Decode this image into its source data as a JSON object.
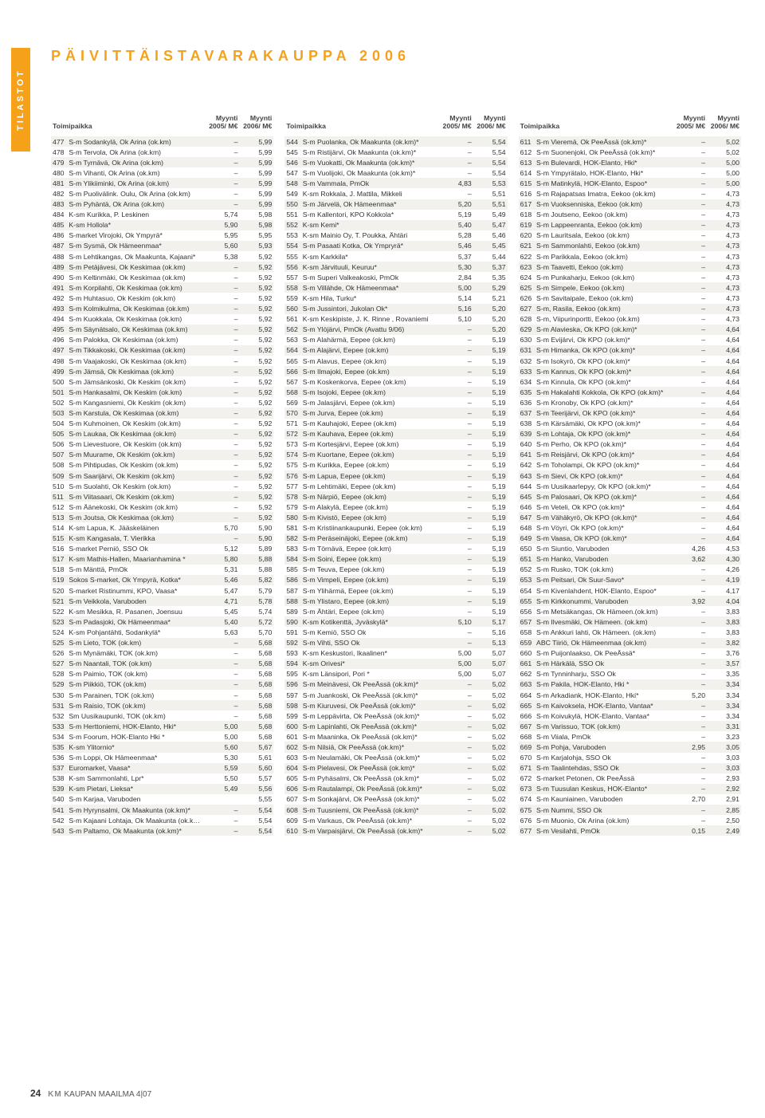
{
  "sidebar": "TILASTOT",
  "header": "PÄIVITTÄISTAVARAKAUPPA 2006",
  "column_headers": {
    "loc": "Toimipaikka",
    "y1": "Myynti 2005/ M€",
    "y2": "Myynti 2006/ M€"
  },
  "col1": [
    [
      "477",
      "S-m Sodankylä, Ok Arina (ok.km)",
      "–",
      "5,99"
    ],
    [
      "478",
      "S-m Tervola, Ok Arina (ok.km)",
      "–",
      "5,99"
    ],
    [
      "479",
      "S-m Tyrnävä, Ok Arina (ok.km)",
      "–",
      "5,99"
    ],
    [
      "480",
      "S-m Vihanti, Ok Arina (ok.km)",
      "–",
      "5,99"
    ],
    [
      "481",
      "S-m Ylikiiminki, Ok Arina (ok.km)",
      "–",
      "5,99"
    ],
    [
      "482",
      "S-m Puolivälink. Oulu, Ok Arina (ok.km)",
      "–",
      "5,99"
    ],
    [
      "483",
      "S-m Pyhäntä, Ok Arina (ok.km)",
      "–",
      "5,99"
    ],
    [
      "484",
      "K-sm Kurikka, P. Leskinen",
      "5,74",
      "5,98"
    ],
    [
      "485",
      "K-sm Hollola*",
      "5,90",
      "5,98"
    ],
    [
      "486",
      "S-market Virojoki, Ok Ympyrä*",
      "5,95",
      "5,95"
    ],
    [
      "487",
      "S-m Sysmä, Ok Hämeenmaa*",
      "5,60",
      "5,93"
    ],
    [
      "488",
      "S-m Lehtikangas, Ok Maakunta, Kajaani*",
      "5,38",
      "5,92"
    ],
    [
      "489",
      "S-m Petäjävesi, Ok Keskimaa (ok.km)",
      "–",
      "5,92"
    ],
    [
      "490",
      "S-m Keltinmäki, Ok Keskimaa (ok.km)",
      "–",
      "5,92"
    ],
    [
      "491",
      "S-m Korpilahti, Ok Keskimaa (ok.km)",
      "–",
      "5,92"
    ],
    [
      "492",
      "S-m Huhtasuo, Ok Keskim (ok.km)",
      "–",
      "5,92"
    ],
    [
      "493",
      "S-m Kolmikulma, Ok Keskimaa (ok.km)",
      "–",
      "5,92"
    ],
    [
      "494",
      "S-m Kuokkala, Ok Keskimaa (ok.km)",
      "–",
      "5,92"
    ],
    [
      "495",
      "S-m Säynätsalo, Ok Keskimaa (ok.km)",
      "–",
      "5,92"
    ],
    [
      "496",
      "S-m Palokka, Ok Keskimaa (ok.km)",
      "–",
      "5,92"
    ],
    [
      "497",
      "S-m Tikkakoski, Ok Keskimaa (ok.km)",
      "–",
      "5,92"
    ],
    [
      "498",
      "S-m Vaajakoski, Ok Keskimaa (ok.km)",
      "–",
      "5,92"
    ],
    [
      "499",
      "S-m Jämsä, Ok Keskimaa (ok.km)",
      "–",
      "5,92"
    ],
    [
      "500",
      "S-m Jämsänkoski, Ok Keskim (ok.km)",
      "–",
      "5,92"
    ],
    [
      "501",
      "S-m Hankasalmi, Ok Keskim (ok.km)",
      "–",
      "5,92"
    ],
    [
      "502",
      "S-m Kangasniemi, Ok Keskim (ok.km)",
      "–",
      "5,92"
    ],
    [
      "503",
      "S-m Karstula, Ok Keskimaa (ok.km)",
      "–",
      "5,92"
    ],
    [
      "504",
      "S-m Kuhmoinen, Ok Keskim (ok.km)",
      "–",
      "5,92"
    ],
    [
      "505",
      "S-m Laukaa, Ok Keskimaa (ok.km)",
      "–",
      "5,92"
    ],
    [
      "506",
      "S-m Lievestuore, Ok Keskim (ok.km)",
      "–",
      "5,92"
    ],
    [
      "507",
      "S-m Muurame, Ok Keskim (ok.km)",
      "–",
      "5,92"
    ],
    [
      "508",
      "S-m Pihtipudas, Ok Keskim (ok.km)",
      "–",
      "5,92"
    ],
    [
      "509",
      "S-m Saarijärvi, Ok Keskim (ok.km)",
      "–",
      "5,92"
    ],
    [
      "510",
      "S-m Suolahti, Ok Keskim (ok.km)",
      "–",
      "5,92"
    ],
    [
      "511",
      "S-m Viitasaari, Ok Keskim (ok.km)",
      "–",
      "5,92"
    ],
    [
      "512",
      "S-m Äänekoski, Ok Keskim (ok.km)",
      "–",
      "5,92"
    ],
    [
      "513",
      "S-m Joutsa, Ok Keskimaa (ok.km)",
      "–",
      "5,92"
    ],
    [
      "514",
      "K-sm Lapua, K. Jääskeläinen",
      "5,70",
      "5,90"
    ],
    [
      "515",
      "K-sm Kangasala, T. Vierikka",
      "–",
      "5,90"
    ],
    [
      "516",
      "S-market Perniö, SSO Ok",
      "5,12",
      "5,89"
    ],
    [
      "517",
      "K-sm Mathis-Hallen, Maarianhamina *",
      "5,80",
      "5,88"
    ],
    [
      "518",
      "S-m Mänttä, PmOk",
      "5,31",
      "5,88"
    ],
    [
      "519",
      "Sokos S-market, Ok Ympyrä, Kotka*",
      "5,46",
      "5,82"
    ],
    [
      "520",
      "S-market Ristinummi, KPO, Vaasa*",
      "5,47",
      "5,79"
    ],
    [
      "521",
      "S-m Veikkola, Varuboden",
      "4,71",
      "5,78"
    ],
    [
      "522",
      "K-sm Mesikka, R. Pasanen, Joensuu",
      "5,45",
      "5,74"
    ],
    [
      "523",
      "S-m Padasjoki, Ok Hämeenmaa*",
      "5,40",
      "5,72"
    ],
    [
      "524",
      "K-sm Pohjantähti, Sodankylä*",
      "5,63",
      "5,70"
    ],
    [
      "525",
      "S-m Lieto, TOK (ok.km)",
      "–",
      "5,68"
    ],
    [
      "526",
      "S-m Mynämäki, TOK (ok.km)",
      "–",
      "5,68"
    ],
    [
      "527",
      "S-m Naantali, TOK (ok.km)",
      "–",
      "5,68"
    ],
    [
      "528",
      "S-m Paimio, TOK (ok.km)",
      "–",
      "5,68"
    ],
    [
      "529",
      "S-m Piikkiö, TOK (ok.km)",
      "–",
      "5,68"
    ],
    [
      "530",
      "S-m Parainen, TOK (ok.km)",
      "–",
      "5,68"
    ],
    [
      "531",
      "S-m Raisio, TOK (ok.km)",
      "–",
      "5,68"
    ],
    [
      "532",
      "Sm Uusikaupunki, TOK (ok.km)",
      "–",
      "5,68"
    ],
    [
      "533",
      "S-m Herttoniemi, HOK-Elanto, Hki*",
      "5,00",
      "5,68"
    ],
    [
      "534",
      "S-m Foorum, HOK-Elanto Hki *",
      "5,00",
      "5,68"
    ],
    [
      "535",
      "K-sm Ylitornio*",
      "5,60",
      "5,67"
    ],
    [
      "536",
      "S-m Loppi, Ok Hämeenmaa*",
      "5,30",
      "5,61"
    ],
    [
      "537",
      "Euromarket, Vaasa*",
      "5,59",
      "5,60"
    ],
    [
      "538",
      "K-sm Sammonlahti, Lpr*",
      "5,50",
      "5,57"
    ],
    [
      "539",
      "K-sm Pietari, Lieksa*",
      "5,49",
      "5,56"
    ],
    [
      "540",
      "S-m Karjaa, Varuboden",
      "",
      "5,55"
    ],
    [
      "541",
      "S-m Hyrynsalmi, Ok Maakunta (ok.km)*",
      "–",
      "5,54"
    ],
    [
      "542",
      "S-m Kajaani Lohtaja, Ok Maakunta (ok.km)*",
      "–",
      "5,54"
    ],
    [
      "543",
      "S-m Paltamo, Ok Maakunta (ok.km)*",
      "–",
      "5,54"
    ]
  ],
  "col2": [
    [
      "544",
      "S-m Puolanka, Ok Maakunta (ok.km)*",
      "–",
      "5,54"
    ],
    [
      "545",
      "S-m Ristijärvi, Ok Maakunta (ok.km)*",
      "–",
      "5,54"
    ],
    [
      "546",
      "S-m Vuokatti, Ok Maakunta (ok.km)*",
      "–",
      "5,54"
    ],
    [
      "547",
      "S-m Vuolijoki, Ok Maakunta (ok.km)*",
      "–",
      "5,54"
    ],
    [
      "548",
      "S-m Vammala, PmOk",
      "4,83",
      "5,53"
    ],
    [
      "549",
      "K-sm Rokkala, J. Mattila, Mikkeli",
      "–",
      "5,51"
    ],
    [
      "550",
      "S-m Järvelä, Ok Hämeenmaa*",
      "5,20",
      "5,51"
    ],
    [
      "551",
      "S-m Kallentori, KPO Kokkola*",
      "5,19",
      "5,49"
    ],
    [
      "552",
      "K-sm Kemi*",
      "5,40",
      "5,47"
    ],
    [
      "553",
      "K-sm Mainio Oy, T. Poukka, Ähtäri",
      "5,28",
      "5,46"
    ],
    [
      "554",
      "S-m Pasaati Kotka, Ok Ympryrä*",
      "5,46",
      "5,45"
    ],
    [
      "555",
      "K-sm Karkkila*",
      "5,37",
      "5,44"
    ],
    [
      "556",
      "K-sm Järvituuli, Keuruu*",
      "5,30",
      "5,37"
    ],
    [
      "557",
      "S-m Superi Valkeakoski, PmOk",
      "2,84",
      "5,35"
    ],
    [
      "558",
      "S-m Villähde, Ok Hämeenmaa*",
      "5,00",
      "5,29"
    ],
    [
      "559",
      "K-sm Hila, Turku*",
      "5,14",
      "5,21"
    ],
    [
      "560",
      "S-m Jussintori, Jukolan Ok*",
      "5,16",
      "5,20"
    ],
    [
      "561",
      "K-sm Keskipiste, J. K. Rinne , Rovaniemi",
      "5,10",
      "5,20"
    ],
    [
      "562",
      "S-m Ylöjärvi, PmOk (Avattu 9/06)",
      "–",
      "5,20"
    ],
    [
      "563",
      "S-m Alahärmä, Eepee (ok.km)",
      "–",
      "5,19"
    ],
    [
      "564",
      "S-m Alajärvi, Eepee (ok.km)",
      "–",
      "5,19"
    ],
    [
      "565",
      "S-m Alavus, Eepee (ok.km)",
      "–",
      "5,19"
    ],
    [
      "566",
      "S-m Ilmajoki, Eepee (ok.km)",
      "–",
      "5,19"
    ],
    [
      "567",
      "S-m Koskenkorva, Eepee (ok.km)",
      "–",
      "5,19"
    ],
    [
      "568",
      "S-m Isojoki, Eepee (ok.km)",
      "–",
      "5,19"
    ],
    [
      "569",
      "S-m Jalasjärvi, Eepee (ok.km)",
      "–",
      "5,19"
    ],
    [
      "570",
      "S-m Jurva, Eepee (ok.km)",
      "–",
      "5,19"
    ],
    [
      "571",
      "S-m Kauhajoki, Eepee (ok.km)",
      "–",
      "5,19"
    ],
    [
      "572",
      "S-m Kauhava, Eepee (ok.km)",
      "–",
      "5,19"
    ],
    [
      "573",
      "S-m Kortesjärvi, Eepee (ok.km)",
      "–",
      "5,19"
    ],
    [
      "574",
      "S-m Kuortane, Eepee (ok.km)",
      "–",
      "5,19"
    ],
    [
      "575",
      "S-m Kurikka, Eepee (ok.km)",
      "–",
      "5,19"
    ],
    [
      "576",
      "S-m Lapua, Eepee (ok.km)",
      "–",
      "5,19"
    ],
    [
      "577",
      "S-m Lehtimäki, Eepee (ok.km)",
      "–",
      "5,19"
    ],
    [
      "578",
      "S-m Närpiö, Eepee (ok.km)",
      "–",
      "5,19"
    ],
    [
      "579",
      "S-m Alakylä, Eepee (ok.km)",
      "–",
      "5,19"
    ],
    [
      "580",
      "S-m Kivistö, Eepee (ok.km)",
      "–",
      "5,19"
    ],
    [
      "581",
      "S-m Kristiinankaupunki, Eepee (ok.km)",
      "–",
      "5,19"
    ],
    [
      "582",
      "S-m Peräseinäjoki, Eepee (ok.km)",
      "–",
      "5,19"
    ],
    [
      "583",
      "S-m Törnävä, Eepee (ok.km)",
      "–",
      "5,19"
    ],
    [
      "584",
      "S-m Soini, Eepee (ok.km)",
      "–",
      "5,19"
    ],
    [
      "585",
      "S-m Teuva, Eepee (ok.km)",
      "–",
      "5,19"
    ],
    [
      "586",
      "S-m Vimpeli, Eepee (ok.km)",
      "–",
      "5,19"
    ],
    [
      "587",
      "S-m Ylihärmä, Eepee (ok.km)",
      "–",
      "5,19"
    ],
    [
      "588",
      "S-m Ylistaro, Eepee (ok.km)",
      "–",
      "5,19"
    ],
    [
      "589",
      "S-m Ähtäri, Eepee (ok.km)",
      "–",
      "5,19"
    ],
    [
      "590",
      "K-sm Kotikenttä, Jyväskylä*",
      "5,10",
      "5,17"
    ],
    [
      "591",
      "S-m Kemiö, SSO Ok",
      "–",
      "5,16"
    ],
    [
      "592",
      "S-m Vihti, SSO Ok",
      "–",
      "5,13"
    ],
    [
      "593",
      "K-sm Keskustori, Ikaalinen*",
      "5,00",
      "5,07"
    ],
    [
      "594",
      "K-sm Orivesi*",
      "5,00",
      "5,07"
    ],
    [
      "595",
      "K-sm Länsipori,  Pori *",
      "5,00",
      "5,07"
    ],
    [
      "596",
      "S-m Meinävesi, Ok PeeÄssä (ok.km)*",
      "–",
      "5,02"
    ],
    [
      "597",
      "S-m Juankoski, Ok PeeÄssä (ok.km)*",
      "–",
      "5,02"
    ],
    [
      "598",
      "S-m Kiuruvesi, Ok PeeÄssä (ok.km)*",
      "–",
      "5,02"
    ],
    [
      "599",
      "S-m Leppävirta, Ok PeeÄssä (ok.km)*",
      "–",
      "5,02"
    ],
    [
      "600",
      "S-m Lapinlahti, Ok PeeÄssä (ok.km)*",
      "–",
      "5,02"
    ],
    [
      "601",
      "S-m Maaninka, Ok PeeÄssä (ok.km)*",
      "–",
      "5,02"
    ],
    [
      "602",
      "S-m Nilsiä, Ok PeeÄssä (ok.km)*",
      "–",
      "5,02"
    ],
    [
      "603",
      "S-m Neulamäki, Ok PeeÄssä (ok.km)*",
      "–",
      "5,02"
    ],
    [
      "604",
      "S-m Pielavesi, Ok PeeÄssä (ok.km)*",
      "–",
      "5,02"
    ],
    [
      "605",
      "S-m Pyhäsalmi, Ok PeeÄssä (ok.km)*",
      "–",
      "5,02"
    ],
    [
      "606",
      "S-m Rautalampi, Ok PeeÄssä (ok.km)*",
      "–",
      "5,02"
    ],
    [
      "607",
      "S-m Sonkajärvi, Ok PeeÄssä (ok.km)*",
      "–",
      "5,02"
    ],
    [
      "608",
      "S-m Tuusniemi, Ok PeeÄssä (ok.km)*",
      "–",
      "5,02"
    ],
    [
      "609",
      "S-m Varkaus, Ok PeeÄssä (ok.km)*",
      "–",
      "5,02"
    ],
    [
      "610",
      "S-m Varpaisjärvi, Ok PeeÄssä (ok.km)*",
      "–",
      "5,02"
    ]
  ],
  "col3": [
    [
      "611",
      "S-m Vieremä, Ok PeeÄssä (ok.km)*",
      "–",
      "5,02"
    ],
    [
      "612",
      "S-m Suonenjoki, Ok PeeÄssä (ok.km)*",
      "–",
      "5,02"
    ],
    [
      "613",
      "S-m Bulevardi, HOK-Elanto, Hki*",
      "–",
      "5,00"
    ],
    [
      "614",
      "S-m Ympyrätalo, HOK-Elanto, Hki*",
      "–",
      "5,00"
    ],
    [
      "615",
      "S-m Matinkylä, HOK-Elanto, Espoo*",
      "–",
      "5,00"
    ],
    [
      "616",
      "S-m Rajapatsas Imatra, Eekoo (ok.km)",
      "–",
      "4,73"
    ],
    [
      "617",
      "S-m Vuoksenniska, Eekoo (ok.km)",
      "–",
      "4,73"
    ],
    [
      "618",
      "S-m Joutseno, Eekoo (ok.km)",
      "–",
      "4,73"
    ],
    [
      "619",
      "S-m Lappeenranta, Eekoo (ok.km)",
      "–",
      "4,73"
    ],
    [
      "620",
      "S-m Lauritsala, Eekoo (ok.km)",
      "–",
      "4,73"
    ],
    [
      "621",
      "S-m Sammonlahti, Eekoo (ok.km)",
      "–",
      "4,73"
    ],
    [
      "622",
      "S-m Parikkala, Eekoo (ok.km)",
      "–",
      "4,73"
    ],
    [
      "623",
      "S-m Taavetti, Eekoo (ok.km)",
      "–",
      "4,73"
    ],
    [
      "624",
      "S-m Punkaharju, Eekoo (ok.km)",
      "–",
      "4,73"
    ],
    [
      "625",
      "S-m Simpele, Eekoo (ok.km)",
      "–",
      "4,73"
    ],
    [
      "626",
      "S-m Savitaipale, Eekoo (ok.km)",
      "–",
      "4,73"
    ],
    [
      "627",
      "S-m, Rasila, Eekoo (ok.km)",
      "–",
      "4,73"
    ],
    [
      "628",
      "S-m, Viipurinportti, Eekoo (ok.km)",
      "–",
      "4,73"
    ],
    [
      "629",
      "S-m Alavieska, Ok KPO (ok.km)*",
      "–",
      "4,64"
    ],
    [
      "630",
      "S-m Evijärvi, Ok KPO (ok.km)*",
      "–",
      "4,64"
    ],
    [
      "631",
      "S-m Himanka, Ok KPO (ok.km)*",
      "–",
      "4,64"
    ],
    [
      "632",
      "S-m Isokyrö, Ok KPO (ok.km)*",
      "–",
      "4,64"
    ],
    [
      "633",
      "S-m Kannus, Ok KPO (ok.km)*",
      "–",
      "4,64"
    ],
    [
      "634",
      "S-m Kinnula, Ok KPO (ok.km)*",
      "–",
      "4,64"
    ],
    [
      "635",
      "S-m Hakalahti Kokkola, Ok KPO (ok.km)*",
      "–",
      "4,64"
    ],
    [
      "636",
      "S-m Kronoby, Ok KPO (ok.km)*",
      "–",
      "4,64"
    ],
    [
      "637",
      "S-m Teerijärvi, Ok KPO (ok.km)*",
      "–",
      "4,64"
    ],
    [
      "638",
      "S-m Kärsämäki, Ok KPO (ok.km)*",
      "–",
      "4,64"
    ],
    [
      "639",
      "S-m Lohtaja, Ok KPO (ok.km)*",
      "–",
      "4,64"
    ],
    [
      "640",
      "S-m Perho, Ok KPO (ok.km)*",
      "–",
      "4,64"
    ],
    [
      "641",
      "S-m Reisjärvi, Ok KPO (ok.km)*",
      "–",
      "4,64"
    ],
    [
      "642",
      "S-m Toholampi, Ok KPO (ok.km)*",
      "–",
      "4,64"
    ],
    [
      "643",
      "S-m Sievi, Ok KPO (ok.km)*",
      "–",
      "4,64"
    ],
    [
      "644",
      "S-m Uusikaarlepyy, Ok KPO (ok.km)*",
      "–",
      "4,64"
    ],
    [
      "645",
      "S-m Palosaari, Ok KPO (ok.km)*",
      "–",
      "4,64"
    ],
    [
      "646",
      "S-m Veteli, Ok KPO (ok.km)*",
      "–",
      "4,64"
    ],
    [
      "647",
      "S-m Vähäkyrö, Ok KPO (ok.km)*",
      "–",
      "4,64"
    ],
    [
      "648",
      "S-m Vöyri, Ok KPO (ok.km)*",
      "–",
      "4,64"
    ],
    [
      "649",
      "S-m Vaasa, Ok KPO (ok.km)*",
      "–",
      "4,64"
    ],
    [
      "650",
      "S-m Siuntio, Varuboden",
      "4,26",
      "4,53"
    ],
    [
      "651",
      "S-m Hanko, Varuboden",
      "3,62",
      "4,30"
    ],
    [
      "652",
      "S-m Rusko, TOK (ok.km)",
      "–",
      "4,26"
    ],
    [
      "653",
      "S-m Peitsari, Ok Suur-Savo*",
      "–",
      "4,19"
    ],
    [
      "654",
      "S-m Kivenlahdent, H0K-Elanto,  Espoo*",
      "–",
      "4,17"
    ],
    [
      "655",
      "S-m Kirkkonummi, Varuboden",
      "3,92",
      "4,04"
    ],
    [
      "656",
      "S-m Metsäkangas, Ok Hämeen.(ok.km)",
      "–",
      "3,83"
    ],
    [
      "657",
      "S-m Ilvesmäki, Ok Hämeen. (ok.km)",
      "–",
      "3,83"
    ],
    [
      "658",
      "S-m Ankkuri lahti, Ok Hämeen. (ok.km)",
      "–",
      "3,83"
    ],
    [
      "659",
      "ABC Tiiriö, Ok Hämeenmaa (ok.km)",
      "–",
      "3,82"
    ],
    [
      "660",
      "S-m Puijonlaakso, Ok PeeÄssä*",
      "–",
      "3,76"
    ],
    [
      "661",
      "S-m Härkälä, SSO Ok",
      "–",
      "3,57"
    ],
    [
      "662",
      "S-m Tynninharju, SSO Ok",
      "–",
      "3,35"
    ],
    [
      "663",
      "S-m Pakila, HOK-Elanto, Hki *",
      "–",
      "3,34"
    ],
    [
      "664",
      "S-m Arkadiank, HOK-Elanto, Hki*",
      "5,20",
      "3,34"
    ],
    [
      "665",
      "S-m Kaivoksela, HOK-Elanto, Vantaa*",
      "–",
      "3,34"
    ],
    [
      "666",
      "S-m Koivukylä, HOK-Elanto, Vantaa*",
      "–",
      "3,34"
    ],
    [
      "667",
      "S-m Varissuo, TOK (ok.km)",
      "–",
      "3,31"
    ],
    [
      "668",
      "S-m Viiala, PmOk",
      "–",
      "3,23"
    ],
    [
      "669",
      "S-m Pohja, Varuboden",
      "2,95",
      "3,05"
    ],
    [
      "670",
      "S-m Karjalohja, SSO Ok",
      "–",
      "3,03"
    ],
    [
      "671",
      "S-m Taalintehdas, SSO Ok",
      "–",
      "3,03"
    ],
    [
      "672",
      "S-market Petonen, Ok PeeÄssä",
      "–",
      "2,93"
    ],
    [
      "673",
      "S-m Tuusulan Keskus, HOK-Elanto*",
      "–",
      "2,92"
    ],
    [
      "674",
      "S-m Kauniainen, Varuboden",
      "2,70",
      "2,91"
    ],
    [
      "675",
      "S-m Nummi, SSO Ok",
      "–",
      "2,85"
    ],
    [
      "676",
      "S-m Muonio, Ok Arina (ok.km)",
      "–",
      "2,50"
    ],
    [
      "677",
      "S-m Vesilahti, PmOk",
      "0,15",
      "2,49"
    ]
  ],
  "footer": {
    "page": "24",
    "km": "KM",
    "rest": "KAUPAN MAAILMA   4|07"
  }
}
